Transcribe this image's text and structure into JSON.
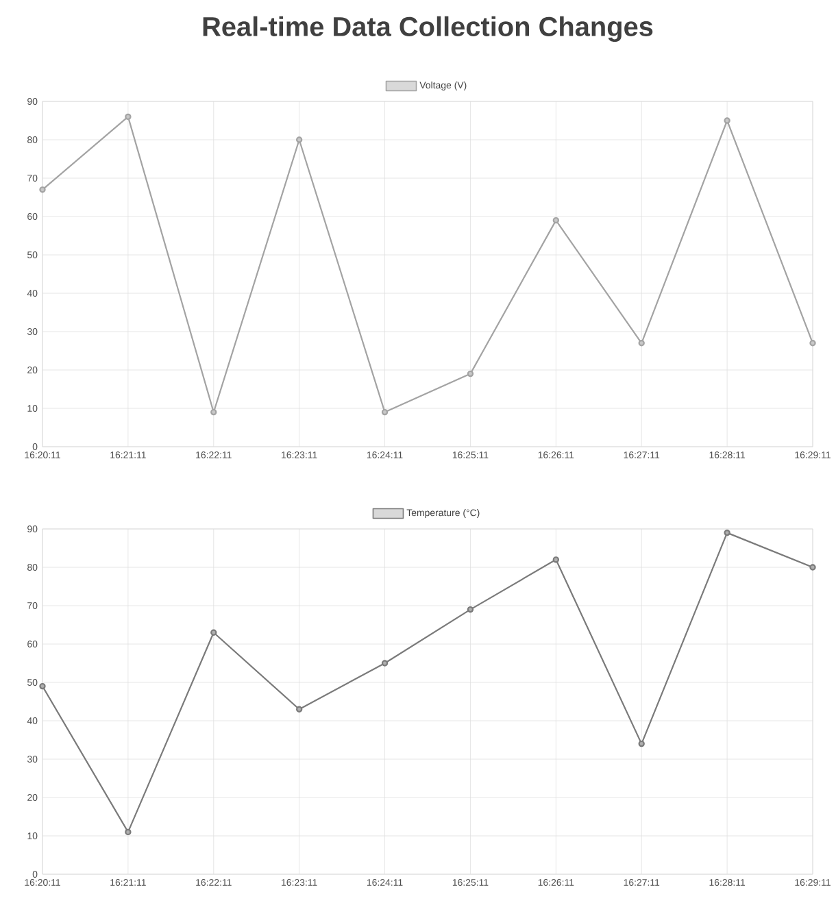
{
  "chart_data": [
    {
      "type": "line",
      "title": "Real-time Data Collection Changes",
      "categories": [
        "16:20:11",
        "16:21:11",
        "16:22:11",
        "16:23:11",
        "16:24:11",
        "16:25:11",
        "16:26:11",
        "16:27:11",
        "16:28:11",
        "16:29:11"
      ],
      "series": [
        {
          "name": "Voltage (V)",
          "color": "#a3a3a3",
          "values": [
            67,
            86,
            9,
            80,
            9,
            19,
            59,
            27,
            85,
            27
          ]
        }
      ],
      "ylim": [
        0,
        90
      ],
      "yticks": [
        0,
        10,
        20,
        30,
        40,
        50,
        60,
        70,
        80,
        90
      ],
      "grid": true,
      "legend": "top",
      "marker": "circle"
    },
    {
      "type": "line",
      "categories": [
        "16:20:11",
        "16:21:11",
        "16:22:11",
        "16:23:11",
        "16:24:11",
        "16:25:11",
        "16:26:11",
        "16:27:11",
        "16:28:11",
        "16:29:11"
      ],
      "series": [
        {
          "name": "Temperature (°C)",
          "color": "#7a7a7a",
          "values": [
            49,
            11,
            63,
            43,
            55,
            69,
            82,
            34,
            89,
            80
          ]
        }
      ],
      "ylim": [
        0,
        90
      ],
      "yticks": [
        0,
        10,
        20,
        30,
        40,
        50,
        60,
        70,
        80,
        90
      ],
      "grid": true,
      "legend": "top",
      "marker": "circle"
    }
  ]
}
